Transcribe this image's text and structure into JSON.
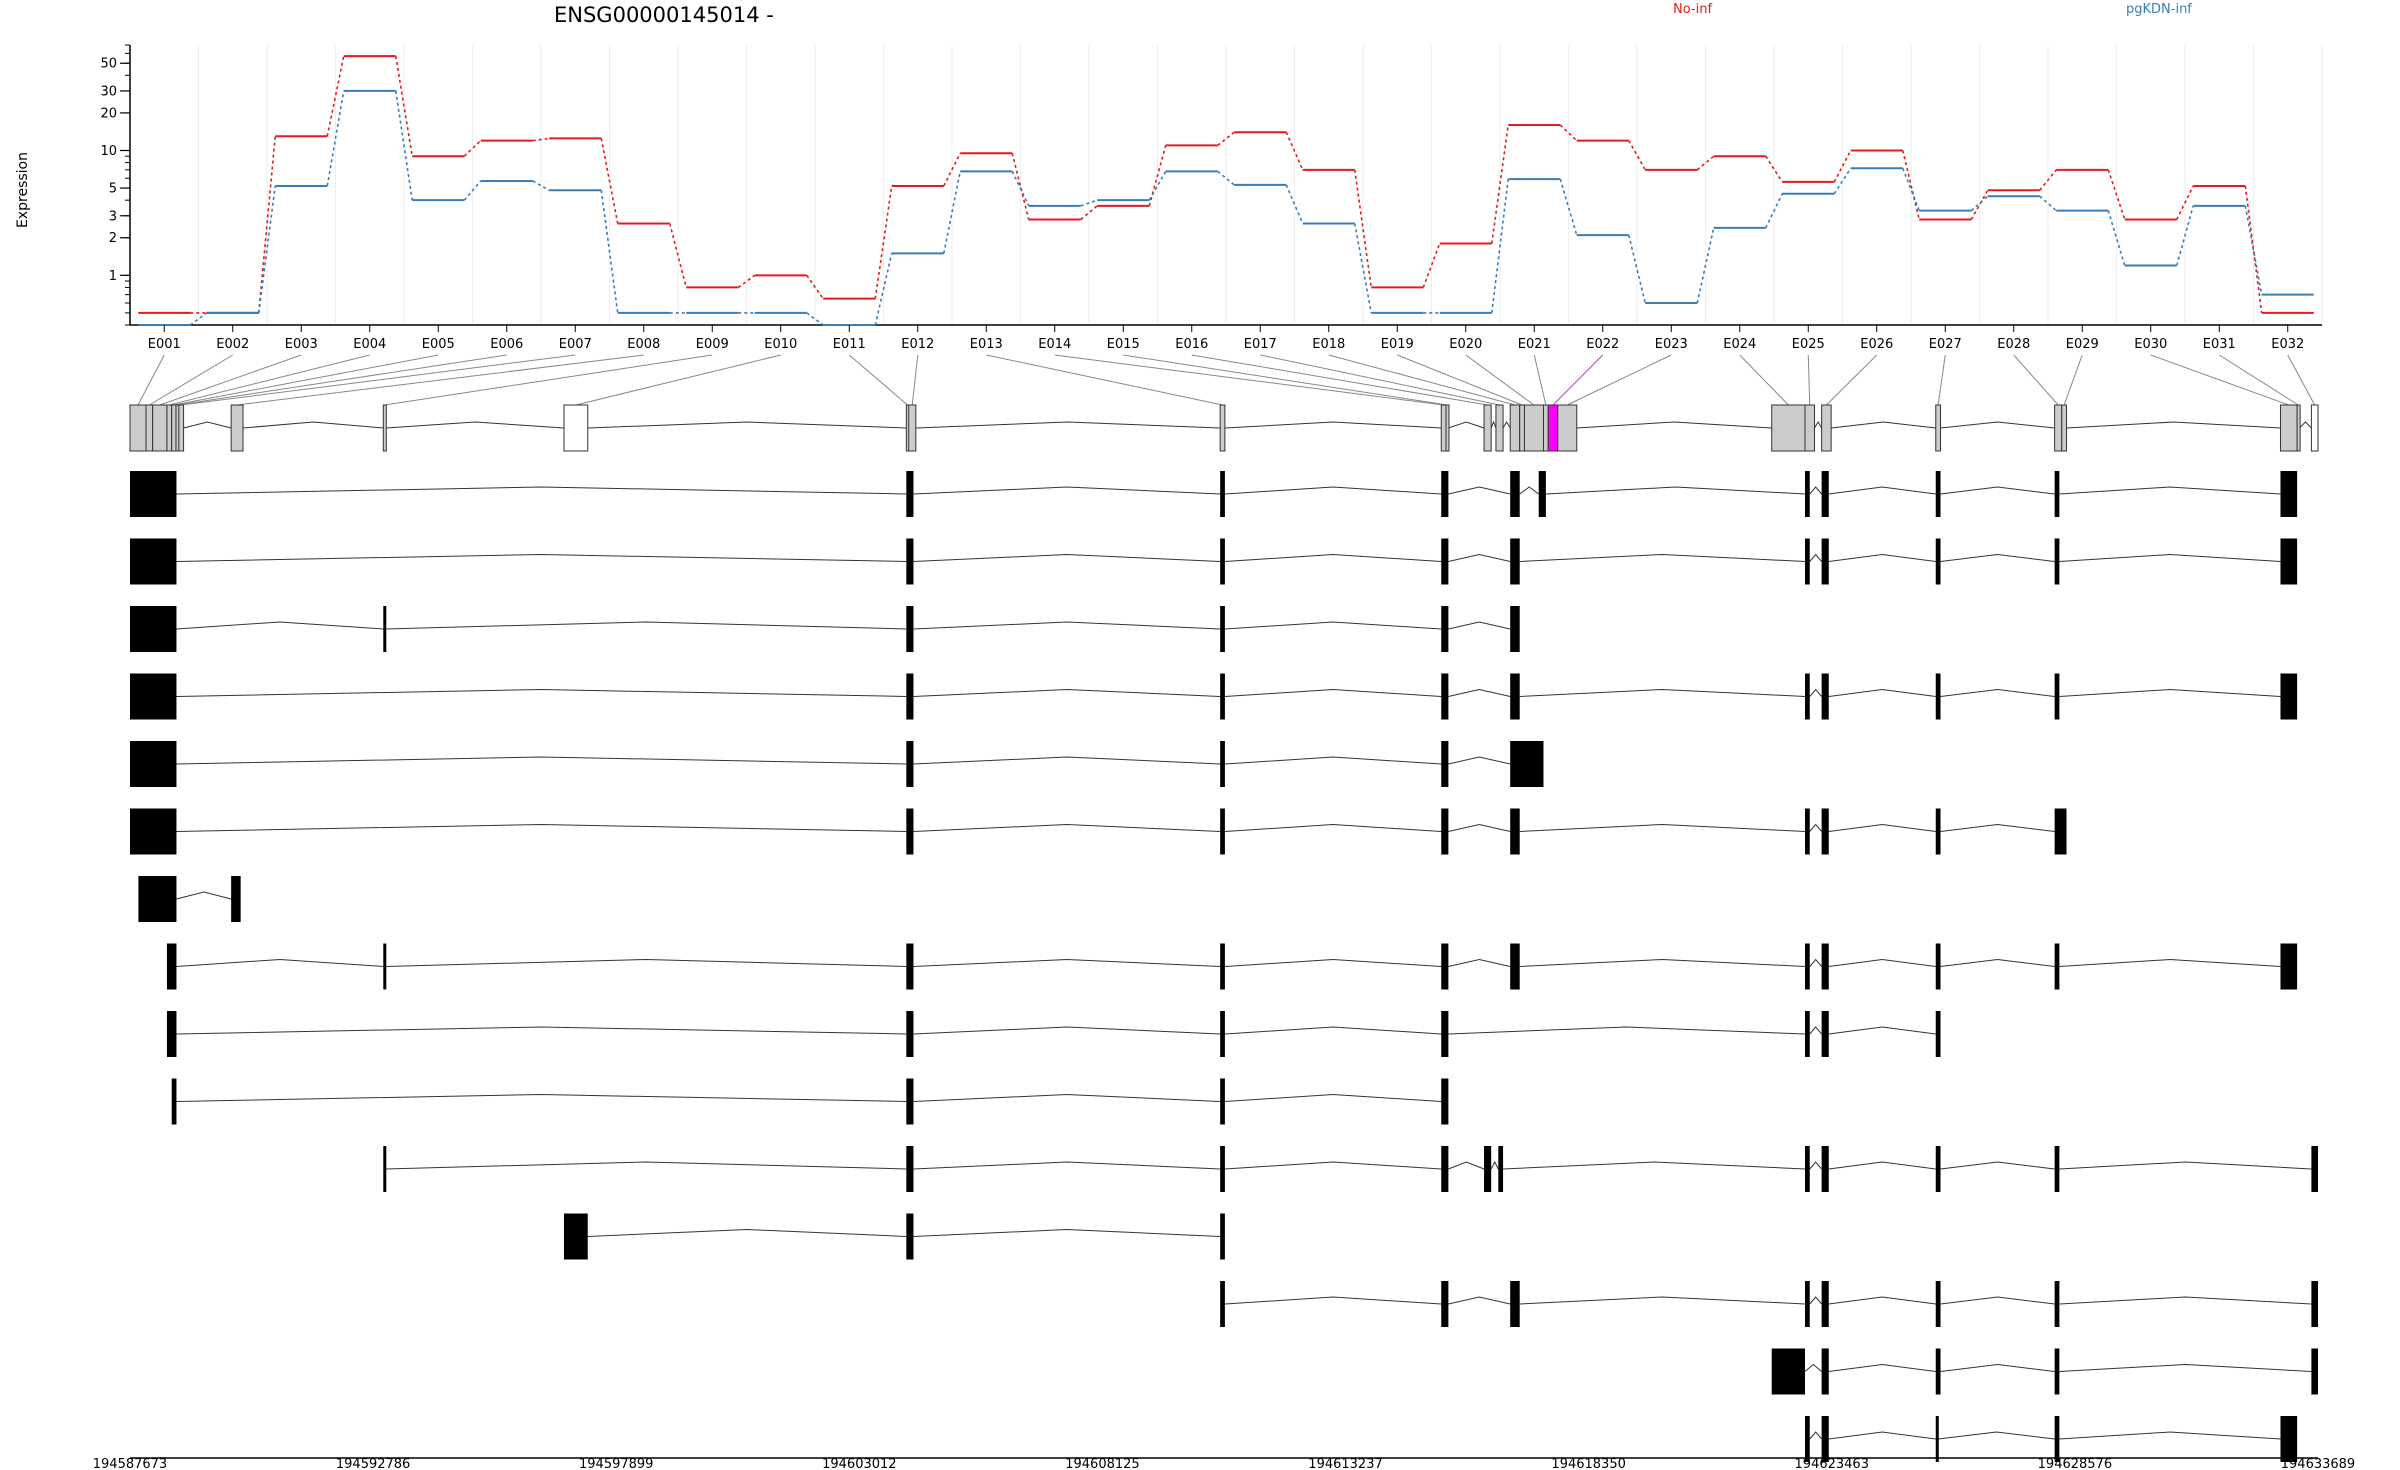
{
  "chart_data": {
    "type": "line",
    "title": "ENSG00000145014 -",
    "ylabel": "Expression",
    "y_scale": "log",
    "y_ticks": [
      1,
      2,
      3,
      5,
      10,
      20,
      30,
      50
    ],
    "ylim": [
      0.4,
      70
    ],
    "exons": [
      "E001",
      "E002",
      "E003",
      "E004",
      "E005",
      "E006",
      "E007",
      "E008",
      "E009",
      "E010",
      "E011",
      "E012",
      "E013",
      "E014",
      "E015",
      "E016",
      "E017",
      "E018",
      "E019",
      "E020",
      "E021",
      "E022",
      "E023",
      "E024",
      "E025",
      "E026",
      "E027",
      "E028",
      "E029",
      "E030",
      "E031",
      "E032"
    ],
    "highlighted_exon": "E022",
    "series": [
      {
        "name": "No-inf",
        "color": "#e41a1c",
        "values": [
          0.5,
          0.5,
          13,
          57,
          9,
          12,
          12.5,
          2.6,
          0.8,
          1.0,
          0.65,
          5.2,
          9.5,
          2.8,
          3.6,
          11,
          14,
          7,
          0.8,
          1.8,
          16,
          12,
          7,
          9,
          5.6,
          10,
          2.8,
          4.8,
          7,
          2.8,
          5.2,
          0.5
        ]
      },
      {
        "name": "pgKDN-inf",
        "color": "#377eb8",
        "values": [
          0.4,
          0.5,
          5.2,
          30,
          4,
          5.7,
          4.8,
          0.5,
          0.5,
          0.5,
          0.4,
          1.5,
          6.8,
          3.6,
          4,
          6.8,
          5.3,
          2.6,
          0.5,
          0.5,
          5.9,
          2.1,
          0.6,
          2.4,
          4.5,
          7.2,
          3.3,
          4.3,
          3.3,
          1.2,
          3.6,
          0.7
        ]
      }
    ],
    "x_axis_ticks": [
      "194587673",
      "194592786",
      "194597899",
      "194603012",
      "194608125",
      "194613237",
      "194618350",
      "194623463",
      "194628576",
      "194633689"
    ],
    "x_range": [
      194587673,
      194633689
    ],
    "exon_genomic_coords": [
      [
        194587673,
        194588010
      ],
      [
        194588010,
        194588150
      ],
      [
        194588150,
        194588450
      ],
      [
        194588450,
        194588550
      ],
      [
        194588550,
        194588640
      ],
      [
        194588640,
        194588700
      ],
      [
        194588700,
        194588800
      ],
      [
        194589800,
        194590050
      ],
      [
        194593000,
        194593060
      ],
      [
        194596800,
        194597300
      ],
      [
        194604000,
        194604050
      ],
      [
        194604050,
        194604200
      ],
      [
        194610600,
        194610700
      ],
      [
        194615250,
        194615350
      ],
      [
        194615350,
        194615400
      ],
      [
        194616150,
        194616300
      ],
      [
        194616400,
        194616550
      ],
      [
        194616700,
        194616900
      ],
      [
        194616900,
        194617000
      ],
      [
        194617000,
        194617400
      ],
      [
        194617400,
        194617500
      ],
      [
        194617500,
        194617700
      ],
      [
        194617700,
        194618100
      ],
      [
        194622200,
        194622900
      ],
      [
        194622900,
        194623100
      ],
      [
        194623250,
        194623450
      ],
      [
        194625650,
        194625750
      ],
      [
        194628150,
        194628300
      ],
      [
        194628300,
        194628400
      ],
      [
        194632900,
        194633250
      ],
      [
        194633250,
        194633300
      ],
      [
        194633550,
        194633689
      ]
    ],
    "transcripts": [
      {
        "exons": [
          [
            194587673,
            194588650
          ],
          [
            194604000,
            194604150
          ],
          [
            194610600,
            194610700
          ],
          [
            194615250,
            194615400
          ],
          [
            194616700,
            194616900
          ],
          [
            194617300,
            194617450
          ],
          [
            194622900,
            194623000
          ],
          [
            194623250,
            194623400
          ],
          [
            194625650,
            194625750
          ],
          [
            194628150,
            194628250
          ],
          [
            194632900,
            194633250
          ]
        ]
      },
      {
        "exons": [
          [
            194587673,
            194588650
          ],
          [
            194604000,
            194604150
          ],
          [
            194610600,
            194610700
          ],
          [
            194615250,
            194615400
          ],
          [
            194616700,
            194616900
          ],
          [
            194622900,
            194623000
          ],
          [
            194623250,
            194623400
          ],
          [
            194625650,
            194625750
          ],
          [
            194628150,
            194628250
          ],
          [
            194632900,
            194633250
          ]
        ]
      },
      {
        "exons": [
          [
            194587673,
            194588650
          ],
          [
            194593000,
            194593050
          ],
          [
            194604000,
            194604150
          ],
          [
            194610600,
            194610700
          ],
          [
            194615250,
            194615400
          ],
          [
            194616700,
            194616900
          ]
        ]
      },
      {
        "exons": [
          [
            194587673,
            194588650
          ],
          [
            194604000,
            194604150
          ],
          [
            194610600,
            194610700
          ],
          [
            194615250,
            194615400
          ],
          [
            194616700,
            194616900
          ],
          [
            194622900,
            194623000
          ],
          [
            194623250,
            194623400
          ],
          [
            194625650,
            194625750
          ],
          [
            194628150,
            194628250
          ],
          [
            194632900,
            194633250
          ]
        ]
      },
      {
        "exons": [
          [
            194587673,
            194588650
          ],
          [
            194604000,
            194604150
          ],
          [
            194610600,
            194610700
          ],
          [
            194615250,
            194615400
          ],
          [
            194616700,
            194617400
          ]
        ]
      },
      {
        "exons": [
          [
            194587673,
            194588650
          ],
          [
            194604000,
            194604150
          ],
          [
            194610600,
            194610700
          ],
          [
            194615250,
            194615400
          ],
          [
            194616700,
            194616900
          ],
          [
            194622900,
            194623000
          ],
          [
            194623250,
            194623400
          ],
          [
            194625650,
            194625750
          ],
          [
            194628150,
            194628400
          ]
        ]
      },
      {
        "exons": [
          [
            194587850,
            194588650
          ],
          [
            194589800,
            194590000
          ]
        ]
      },
      {
        "exons": [
          [
            194588450,
            194588650
          ],
          [
            194593000,
            194593050
          ],
          [
            194604000,
            194604150
          ],
          [
            194610600,
            194610700
          ],
          [
            194615250,
            194615400
          ],
          [
            194616700,
            194616900
          ],
          [
            194622900,
            194623000
          ],
          [
            194623250,
            194623400
          ],
          [
            194625650,
            194625750
          ],
          [
            194628150,
            194628250
          ],
          [
            194632900,
            194633250
          ]
        ]
      },
      {
        "exons": [
          [
            194588450,
            194588650
          ],
          [
            194604000,
            194604150
          ],
          [
            194610600,
            194610700
          ],
          [
            194615250,
            194615400
          ],
          [
            194622900,
            194623000
          ],
          [
            194623250,
            194623400
          ],
          [
            194625650,
            194625750
          ]
        ]
      },
      {
        "exons": [
          [
            194588550,
            194588650
          ],
          [
            194604000,
            194604150
          ],
          [
            194610600,
            194610700
          ],
          [
            194615250,
            194615400
          ]
        ]
      },
      {
        "exons": [
          [
            194593000,
            194593050
          ],
          [
            194604000,
            194604150
          ],
          [
            194610600,
            194610700
          ],
          [
            194615250,
            194615400
          ],
          [
            194616150,
            194616300
          ],
          [
            194616450,
            194616550
          ],
          [
            194622900,
            194623000
          ],
          [
            194623250,
            194623400
          ],
          [
            194625650,
            194625750
          ],
          [
            194628150,
            194628250
          ],
          [
            194633550,
            194633689
          ]
        ]
      },
      {
        "exons": [
          [
            194596800,
            194597300
          ],
          [
            194604000,
            194604150
          ],
          [
            194610600,
            194610700
          ]
        ]
      },
      {
        "exons": [
          [
            194610600,
            194610700
          ],
          [
            194615250,
            194615400
          ],
          [
            194616700,
            194616900
          ],
          [
            194622900,
            194623000
          ],
          [
            194623250,
            194623400
          ],
          [
            194625650,
            194625750
          ],
          [
            194628150,
            194628250
          ],
          [
            194633550,
            194633689
          ]
        ]
      },
      {
        "exons": [
          [
            194622200,
            194622900
          ],
          [
            194623250,
            194623400
          ],
          [
            194625650,
            194625750
          ],
          [
            194628150,
            194628250
          ],
          [
            194633550,
            194633689
          ]
        ]
      },
      {
        "exons": [
          [
            194622900,
            194623000
          ],
          [
            194623250,
            194623400
          ],
          [
            194625650,
            194625700
          ],
          [
            194628150,
            194628250
          ],
          [
            194632900,
            194633250
          ]
        ]
      }
    ]
  }
}
